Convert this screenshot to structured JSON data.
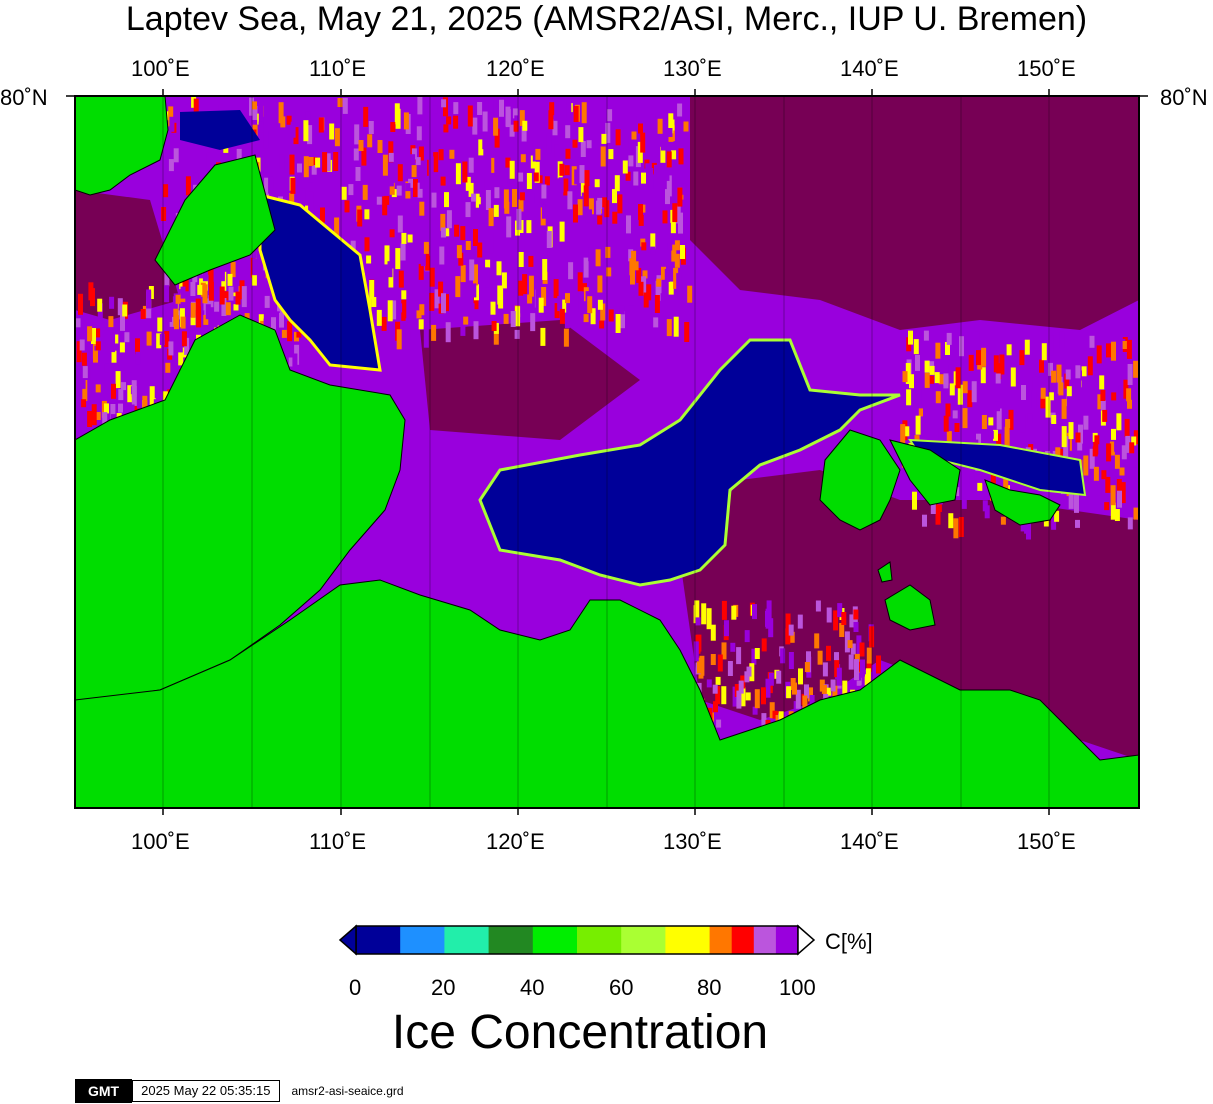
{
  "title": "Laptev Sea, May 21, 2025 (AMSR2/ASI, Merc., IUP U. Bremen)",
  "map": {
    "lon_ticks": [
      "100˚E",
      "110˚E",
      "120˚E",
      "130˚E",
      "140˚E",
      "150˚E"
    ],
    "lat_label": "80˚N",
    "colors": {
      "land": "#00dd00",
      "open_water": "#000099",
      "full_ice": "#770055",
      "high_ice": "#9900dd",
      "mid_high_ice": "#bb55dd",
      "red_ice": "#ff0000",
      "orange_ice": "#ff7700",
      "yellow_ice": "#ffff00"
    }
  },
  "colorbar": {
    "unit_label": "C[%]",
    "tick_labels": [
      "0",
      "20",
      "40",
      "60",
      "80",
      "100"
    ],
    "title": "Ice Concentration",
    "colors": [
      "#000099",
      "#1e90ff",
      "#22eeaa",
      "#228822",
      "#00ee00",
      "#77ee00",
      "#aaff33",
      "#ffff00",
      "#ff7700",
      "#ff0000",
      "#bb55dd",
      "#9900dd"
    ]
  },
  "footer": {
    "logo": "GMT",
    "timestamp": "2025 May 22 05:35:15",
    "grid_file": "amsr2-asi-seaice.grd"
  }
}
